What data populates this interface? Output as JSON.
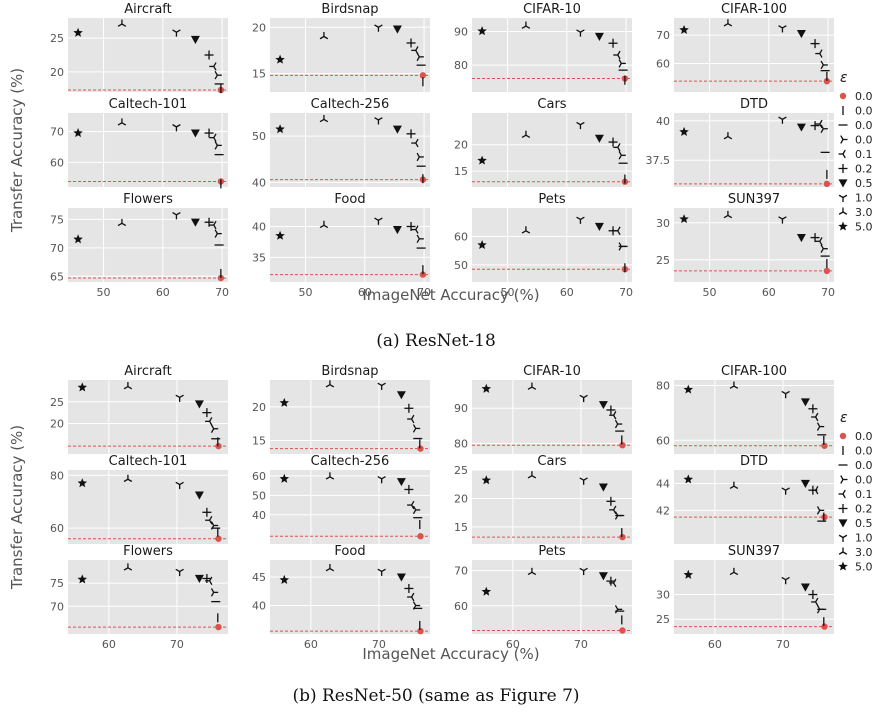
{
  "colors": {
    "panel_bg": "#e5e5e5",
    "grid": "#ffffff",
    "baseline": "#d9534f",
    "marker": "#111111",
    "baseline_point": "#d9534f"
  },
  "legend": {
    "title": "ε",
    "entries": [
      {
        "label": "0.0",
        "marker": "dot"
      },
      {
        "label": "0.01",
        "marker": "vline"
      },
      {
        "label": "0.03",
        "marker": "hline"
      },
      {
        "label": "0.05",
        "marker": "tri_left"
      },
      {
        "label": "0.1",
        "marker": "tri_right"
      },
      {
        "label": "0.25",
        "marker": "plus"
      },
      {
        "label": "0.5",
        "marker": "triangle_down"
      },
      {
        "label": "1.0",
        "marker": "tri_down"
      },
      {
        "label": "3.0",
        "marker": "tri_up"
      },
      {
        "label": "5.0",
        "marker": "star"
      }
    ]
  },
  "chart_data": [
    {
      "caption": "(a) ResNet-18",
      "xlabel": "ImageNet Accuracy (%)",
      "ylabel": "Transfer Accuracy (%)",
      "type": "scatter",
      "eps": [
        "0.0",
        "0.01",
        "0.03",
        "0.05",
        "0.1",
        "0.25",
        "0.5",
        "1.0",
        "3.0",
        "5.0"
      ],
      "imagenet_acc": [
        69.8,
        69.8,
        69.5,
        69.2,
        68.6,
        67.8,
        65.5,
        62.3,
        53.1,
        45.7
      ],
      "xlim": [
        44,
        71
      ],
      "xticks": [
        50,
        60,
        70
      ],
      "panels": [
        {
          "title": "Aircraft",
          "ylim": [
            17,
            28
          ],
          "yticks": [
            20,
            25
          ],
          "values": [
            17.3,
            17.5,
            18.2,
            19.5,
            20.8,
            22.5,
            24.8,
            25.9,
            27.1,
            25.8
          ]
        },
        {
          "title": "Birdsnap",
          "ylim": [
            13,
            21
          ],
          "yticks": [
            15,
            20
          ],
          "values": [
            14.8,
            14.1,
            15.9,
            16.8,
            17.5,
            18.3,
            19.8,
            20.0,
            19.0,
            16.5
          ]
        },
        {
          "title": "CIFAR-10",
          "ylim": [
            72,
            94
          ],
          "yticks": [
            80,
            90
          ],
          "values": [
            76.0,
            75.5,
            78.5,
            80.5,
            83.0,
            86.5,
            88.5,
            89.8,
            91.6,
            90.1
          ]
        },
        {
          "title": "CIFAR-100",
          "ylim": [
            50,
            76
          ],
          "yticks": [
            60,
            70
          ],
          "values": [
            53.8,
            55.5,
            57.5,
            59.5,
            63.5,
            67.0,
            70.5,
            72.5,
            74.0,
            71.8
          ]
        },
        {
          "title": "Caltech-101",
          "ylim": [
            52,
            76
          ],
          "yticks": [
            60,
            70
          ],
          "values": [
            53.8,
            53.0,
            62.5,
            65.5,
            68.0,
            69.5,
            69.5,
            71.5,
            72.8,
            69.5
          ]
        },
        {
          "title": "Caltech-256",
          "ylim": [
            39,
            55
          ],
          "yticks": [
            40,
            50
          ],
          "values": [
            40.6,
            40.8,
            43.5,
            45.5,
            48.5,
            50.5,
            51.5,
            53.5,
            53.6,
            51.5
          ]
        },
        {
          "title": "Cars",
          "ylim": [
            12,
            26
          ],
          "yticks": [
            15,
            20
          ],
          "values": [
            13.0,
            13.5,
            16.5,
            18.0,
            19.5,
            20.5,
            21.2,
            23.8,
            21.8,
            17.0
          ]
        },
        {
          "title": "DTD",
          "ylim": [
            35.8,
            40.5
          ],
          "yticks": [
            37.5,
            40.0
          ],
          "values": [
            36.0,
            36.6,
            38.0,
            39.5,
            39.8,
            39.7,
            39.6,
            40.1,
            39.0,
            39.3
          ]
        },
        {
          "title": "Flowers",
          "ylim": [
            64,
            77
          ],
          "yticks": [
            65,
            70,
            75
          ],
          "values": [
            64.7,
            65.5,
            70.5,
            72.5,
            74.0,
            74.5,
            74.5,
            75.8,
            74.3,
            71.5
          ]
        },
        {
          "title": "Food",
          "ylim": [
            31,
            43
          ],
          "yticks": [
            35,
            40
          ],
          "values": [
            32.2,
            33.0,
            36.5,
            38.0,
            39.5,
            40.0,
            39.5,
            41.0,
            40.2,
            38.5
          ]
        },
        {
          "title": "Pets",
          "ylim": [
            44,
            70
          ],
          "yticks": [
            50,
            60
          ],
          "values": [
            48.5,
            49.0,
            56.5,
            56.5,
            62.0,
            62.0,
            63.5,
            66.0,
            62.0,
            57.0
          ]
        },
        {
          "title": "SUN397",
          "ylim": [
            22,
            32
          ],
          "yticks": [
            25,
            30
          ],
          "values": [
            23.5,
            24.5,
            25.5,
            26.5,
            27.5,
            28.0,
            28.0,
            30.5,
            31.0,
            30.5
          ]
        }
      ]
    },
    {
      "caption": "(b) ResNet-50 (same as Figure 7)",
      "xlabel": "ImageNet Accuracy (%)",
      "ylabel": "Transfer Accuracy (%)",
      "type": "scatter",
      "eps": [
        "0.0",
        "0.01",
        "0.03",
        "0.05",
        "0.1",
        "0.25",
        "0.5",
        "1.0",
        "3.0",
        "5.0"
      ],
      "imagenet_acc": [
        76.1,
        76.0,
        75.7,
        75.4,
        74.8,
        74.4,
        73.3,
        70.4,
        62.8,
        56.1
      ],
      "xlim": [
        54,
        77.5
      ],
      "xticks": [
        60,
        70
      ],
      "panels": [
        {
          "title": "Aircraft",
          "ylim": [
            13,
            30
          ],
          "yticks": [
            20,
            25
          ],
          "values": [
            14.8,
            15.8,
            16.5,
            18.8,
            20.5,
            22.5,
            24.5,
            26.0,
            28.5,
            28.3
          ]
        },
        {
          "title": "Birdsnap",
          "ylim": [
            13,
            24
          ],
          "yticks": [
            15,
            20
          ],
          "values": [
            13.8,
            14.5,
            15.3,
            16.8,
            18.2,
            19.8,
            21.8,
            23.2,
            23.3,
            20.6
          ]
        },
        {
          "title": "CIFAR-10",
          "ylim": [
            77,
            98
          ],
          "yticks": [
            80,
            90
          ],
          "values": [
            79.5,
            81.0,
            83.5,
            85.5,
            88.0,
            89.5,
            91.0,
            93.0,
            96.0,
            95.5
          ]
        },
        {
          "title": "CIFAR-100",
          "ylim": [
            55,
            82
          ],
          "yticks": [
            60,
            80
          ],
          "values": [
            58.0,
            60.0,
            62.0,
            65.0,
            68.5,
            71.5,
            74.0,
            77.0,
            79.8,
            78.5
          ]
        },
        {
          "title": "Caltech-101",
          "ylim": [
            54,
            82
          ],
          "yticks": [
            60,
            80
          ],
          "values": [
            56.0,
            58.5,
            60.0,
            61.0,
            63.0,
            66.0,
            72.5,
            76.5,
            78.5,
            77.0
          ]
        },
        {
          "title": "Caltech-256",
          "ylim": [
            25,
            63
          ],
          "yticks": [
            40,
            50,
            60
          ],
          "values": [
            29.0,
            35.0,
            38.5,
            42.5,
            45.0,
            53.0,
            57.0,
            58.5,
            59.5,
            58.5
          ]
        },
        {
          "title": "Cars",
          "ylim": [
            12,
            25
          ],
          "yticks": [
            15,
            20,
            25
          ],
          "values": [
            13.2,
            14.0,
            17.0,
            17.0,
            18.0,
            19.5,
            22.0,
            23.2,
            24.0,
            23.2
          ]
        },
        {
          "title": "DTD",
          "ylim": [
            39.5,
            45
          ],
          "yticks": [
            42,
            44
          ],
          "values": [
            41.5,
            41.5,
            41.2,
            42.0,
            43.5,
            43.5,
            44.0,
            43.5,
            43.8,
            44.3
          ]
        },
        {
          "title": "Flowers",
          "ylim": [
            64,
            80
          ],
          "yticks": [
            70,
            75
          ],
          "values": [
            65.5,
            67.5,
            71.0,
            73.0,
            75.5,
            76.0,
            76.0,
            77.5,
            78.3,
            75.8
          ]
        },
        {
          "title": "Food",
          "ylim": [
            35,
            48
          ],
          "yticks": [
            40,
            45
          ],
          "values": [
            35.5,
            36.5,
            39.5,
            40.0,
            41.5,
            43.0,
            45.0,
            46.0,
            46.5,
            44.5
          ]
        },
        {
          "title": "Pets",
          "ylim": [
            52,
            73
          ],
          "yticks": [
            60,
            70
          ],
          "values": [
            53.0,
            56.0,
            58.5,
            59.0,
            66.5,
            67.0,
            68.5,
            70.0,
            69.5,
            64.0
          ]
        },
        {
          "title": "SUN397",
          "ylim": [
            22,
            37
          ],
          "yticks": [
            25,
            30
          ],
          "values": [
            23.5,
            24.5,
            27.0,
            27.0,
            28.5,
            30.0,
            31.5,
            33.0,
            34.5,
            34.0
          ]
        }
      ]
    }
  ]
}
